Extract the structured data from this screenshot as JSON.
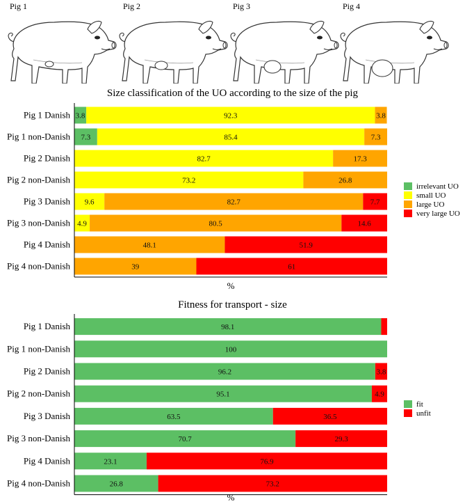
{
  "pigs": {
    "labels": [
      "Pig 1",
      "Pig 2",
      "Pig 3",
      "Pig 4"
    ]
  },
  "chart_data": [
    {
      "type": "bar",
      "orientation": "horizontal-stacked",
      "title": "Size classification of the UO according to the size of the pig",
      "xlabel": "%",
      "xlim": [
        0,
        100
      ],
      "categories": [
        "Pig 1 Danish",
        "Pig 1 non-Danish",
        "Pig 2 Danish",
        "Pig 2 non-Danish",
        "Pig 3 Danish",
        "Pig 3 non-Danish",
        "Pig 4 Danish",
        "Pig 4 non-Danish"
      ],
      "series": [
        {
          "name": "irrelevant UO",
          "color": "#5cbf64",
          "values": [
            3.8,
            7.3,
            0,
            0,
            0,
            0,
            0,
            0
          ],
          "labels": [
            "3.8",
            "7.3",
            "",
            "",
            "",
            "",
            "",
            ""
          ]
        },
        {
          "name": "small UO",
          "color": "#ffff00",
          "values": [
            92.3,
            85.4,
            82.7,
            73.2,
            9.6,
            4.9,
            0,
            0
          ],
          "labels": [
            "92.3",
            "85.4",
            "82.7",
            "73.2",
            "9.6",
            "4.9",
            "",
            ""
          ]
        },
        {
          "name": "large UO",
          "color": "#ffa500",
          "values": [
            3.8,
            7.3,
            17.3,
            26.8,
            82.7,
            80.5,
            48.1,
            39
          ],
          "labels": [
            "3.8",
            "7.3",
            "17.3",
            "26.8",
            "82.7",
            "80.5",
            "48.1",
            "39"
          ]
        },
        {
          "name": "very large UO",
          "color": "#ff0000",
          "values": [
            0,
            0,
            0,
            0,
            7.7,
            14.6,
            51.9,
            61
          ],
          "labels": [
            "",
            "",
            "",
            "",
            "7.7",
            "14.6",
            "51.9",
            "61"
          ]
        }
      ],
      "legend_position": "right"
    },
    {
      "type": "bar",
      "orientation": "horizontal-stacked",
      "title": "Fitness for transport - size",
      "xlabel": "%",
      "xlim": [
        0,
        100
      ],
      "categories": [
        "Pig 1 Danish",
        "Pig 1 non-Danish",
        "Pig 2 Danish",
        "Pig 2 non-Danish",
        "Pig 3 Danish",
        "Pig 3 non-Danish",
        "Pig 4 Danish",
        "Pig 4 non-Danish"
      ],
      "series": [
        {
          "name": "fit",
          "color": "#5cbf64",
          "values": [
            98.1,
            100,
            96.2,
            95.1,
            63.5,
            70.7,
            23.1,
            26.8
          ],
          "labels": [
            "98.1",
            "100",
            "96.2",
            "95.1",
            "63.5",
            "70.7",
            "23.1",
            "26.8"
          ]
        },
        {
          "name": "unfit",
          "color": "#ff0000",
          "values": [
            1.9,
            0,
            3.8,
            4.9,
            36.5,
            29.3,
            76.9,
            73.2
          ],
          "labels": [
            "",
            "",
            "3.8",
            "4.9",
            "36.5",
            "29.3",
            "76.9",
            "73.2"
          ]
        }
      ],
      "legend_position": "right"
    }
  ]
}
